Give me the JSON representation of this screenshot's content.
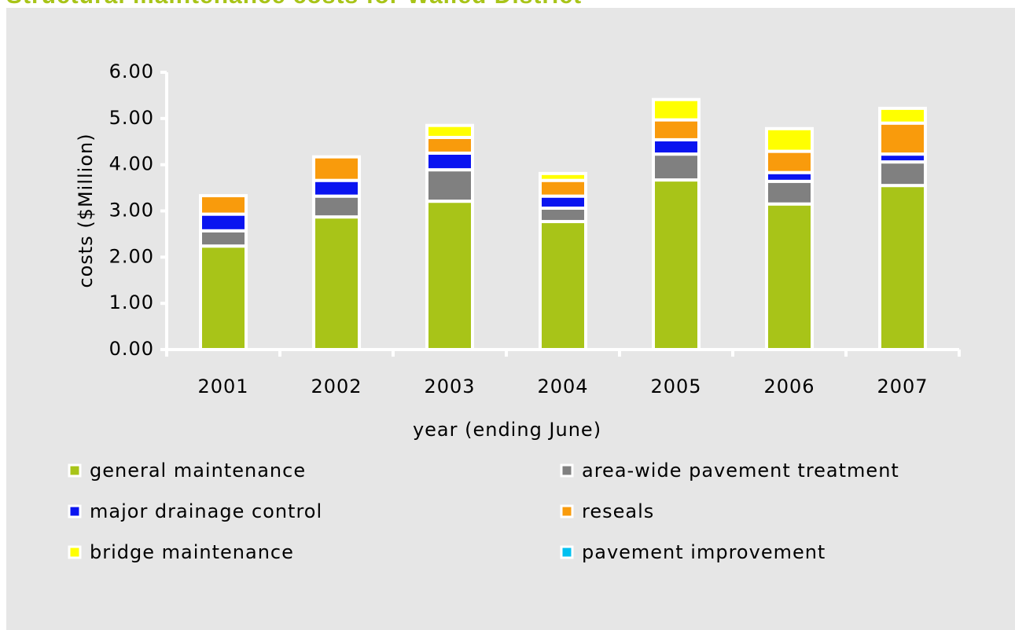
{
  "chart_data": {
    "type": "stacked_bar",
    "title": "Structural maintenance costs for Walled District",
    "x_label": "year (ending June)",
    "y_label": "costs ($Million)",
    "categories": [
      "2001",
      "2002",
      "2003",
      "2004",
      "2005",
      "2006",
      "2007"
    ],
    "series": [
      {
        "name": "general maintenance",
        "color": "#a8c418",
        "values": [
          2.24,
          2.87,
          3.21,
          2.77,
          3.67,
          3.15,
          3.55
        ]
      },
      {
        "name": "area-wide pavement treatment",
        "color": "#808080",
        "values": [
          0.33,
          0.45,
          0.68,
          0.29,
          0.56,
          0.49,
          0.51
        ]
      },
      {
        "name": "major drainage control",
        "color": "#0a14f0",
        "values": [
          0.36,
          0.34,
          0.36,
          0.26,
          0.31,
          0.19,
          0.17
        ]
      },
      {
        "name": "reseals",
        "color": "#f99b0c",
        "values": [
          0.4,
          0.51,
          0.34,
          0.34,
          0.43,
          0.46,
          0.67
        ]
      },
      {
        "name": "bridge maintenance",
        "color": "#ffff00",
        "values": [
          0,
          0,
          0.26,
          0.15,
          0.44,
          0.49,
          0.32
        ]
      },
      {
        "name": "pavement improvement",
        "color": "#00c0f0",
        "values": [
          0,
          0,
          0,
          0,
          0,
          0,
          0
        ]
      }
    ],
    "ylim": [
      0,
      6
    ],
    "yticks": [
      {
        "value": 0,
        "label": "0.00"
      },
      {
        "value": 1,
        "label": "1.00"
      },
      {
        "value": 2,
        "label": "2.00"
      },
      {
        "value": 3,
        "label": "3.00"
      },
      {
        "value": 4,
        "label": "4.00"
      },
      {
        "value": 5,
        "label": "5.00"
      },
      {
        "value": 6,
        "label": "6.00"
      }
    ],
    "legend": "bottom"
  }
}
